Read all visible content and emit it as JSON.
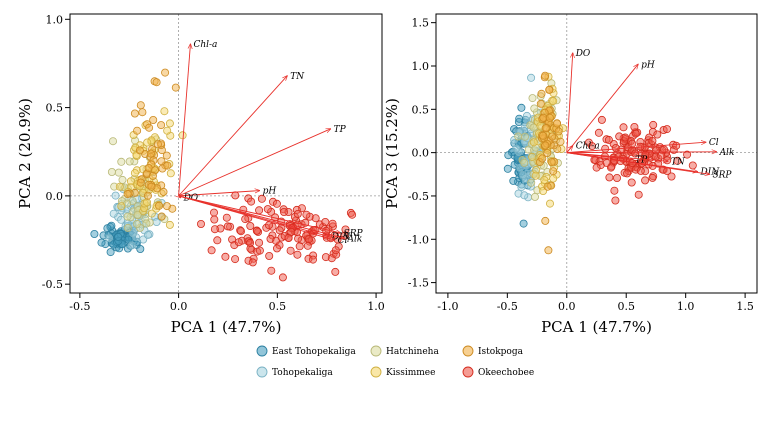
{
  "chart_data": [
    {
      "type": "scatter",
      "title": "",
      "xlabel": "PCA 1 (47.7%)",
      "ylabel": "PCA 2 (20.9%)",
      "xlim": [
        -0.55,
        1.03
      ],
      "ylim": [
        -0.55,
        1.03
      ],
      "xticks": [
        -0.5,
        0.0,
        0.5,
        1.0
      ],
      "yticks": [
        -0.5,
        0.0,
        0.5,
        1.0
      ],
      "xtick_labels": [
        "-0.5",
        "0.0",
        "0.5",
        "1.0"
      ],
      "ytick_labels": [
        "-0.5",
        "0.0",
        "0.5",
        "1.0"
      ],
      "grid": false,
      "reference_lines": {
        "x": 0,
        "y": 0
      },
      "clusters": [
        {
          "lake": "East Tohopekaliga",
          "center": [
            -0.3,
            -0.24
          ],
          "spread": [
            0.05,
            0.03
          ],
          "n": 70
        },
        {
          "lake": "Tohopekaliga",
          "center": [
            -0.22,
            -0.12
          ],
          "spread": [
            0.06,
            0.07
          ],
          "n": 50
        },
        {
          "lake": "Hatchineha",
          "center": [
            -0.2,
            0.03
          ],
          "spread": [
            0.07,
            0.12
          ],
          "n": 60
        },
        {
          "lake": "Kissimmee",
          "center": [
            -0.16,
            0.12
          ],
          "spread": [
            0.06,
            0.15
          ],
          "n": 60
        },
        {
          "lake": "Istokpoga",
          "center": [
            -0.13,
            0.25
          ],
          "spread": [
            0.05,
            0.18
          ],
          "n": 50
        },
        {
          "lake": "Okeechobee",
          "center": [
            0.53,
            -0.22
          ],
          "spread": [
            0.19,
            0.1
          ],
          "n": 130
        }
      ],
      "loadings": [
        {
          "label": "Chl-a",
          "x": 0.06,
          "y": 0.86
        },
        {
          "label": "TN",
          "x": 0.55,
          "y": 0.68
        },
        {
          "label": "TP",
          "x": 0.77,
          "y": 0.38
        },
        {
          "label": "pH",
          "x": 0.41,
          "y": 0.03
        },
        {
          "label": "DO",
          "x": 0.01,
          "y": -0.01
        },
        {
          "label": "SRP",
          "x": 0.82,
          "y": -0.21
        },
        {
          "label": "DIN",
          "x": 0.76,
          "y": -0.23
        },
        {
          "label": "Cl",
          "x": 0.79,
          "y": -0.25
        },
        {
          "label": "Alk",
          "x": 0.84,
          "y": -0.24
        }
      ]
    },
    {
      "type": "scatter",
      "title": "",
      "xlabel": "PCA 1 (47.7%)",
      "ylabel": "PCA 3 (15.2%)",
      "xlim": [
        -1.1,
        1.6
      ],
      "ylim": [
        -1.62,
        1.6
      ],
      "xticks": [
        -1.0,
        -0.5,
        0.0,
        0.5,
        1.0,
        1.5
      ],
      "yticks": [
        -1.5,
        -1.0,
        -0.5,
        0.0,
        0.5,
        1.0,
        1.5
      ],
      "xtick_labels": [
        "-1.0",
        "-0.5",
        "0.0",
        "0.5",
        "1.0",
        "1.5"
      ],
      "ytick_labels": [
        "-1.5",
        "-1.0",
        "-0.5",
        "0.0",
        "0.5",
        "1.0",
        "1.5"
      ],
      "grid": false,
      "reference_lines": {
        "x": 0,
        "y": 0
      },
      "clusters": [
        {
          "lake": "East Tohopekaliga",
          "center": [
            -0.38,
            -0.05
          ],
          "spread": [
            0.05,
            0.25
          ],
          "n": 60
        },
        {
          "lake": "Tohopekaliga",
          "center": [
            -0.32,
            0.0
          ],
          "spread": [
            0.06,
            0.3
          ],
          "n": 50
        },
        {
          "lake": "Hatchineha",
          "center": [
            -0.22,
            0.05
          ],
          "spread": [
            0.07,
            0.32
          ],
          "n": 60
        },
        {
          "lake": "Kissimmee",
          "center": [
            -0.18,
            0.1
          ],
          "spread": [
            0.06,
            0.34
          ],
          "n": 60
        },
        {
          "lake": "Istokpoga",
          "center": [
            -0.15,
            0.25
          ],
          "spread": [
            0.05,
            0.35
          ],
          "n": 50
        },
        {
          "lake": "Okeechobee",
          "center": [
            0.6,
            -0.05
          ],
          "spread": [
            0.18,
            0.15
          ],
          "n": 130
        }
      ],
      "loadings": [
        {
          "label": "DO",
          "x": 0.05,
          "y": 1.15
        },
        {
          "label": "pH",
          "x": 0.6,
          "y": 1.02
        },
        {
          "label": "Chl-a",
          "x": 0.05,
          "y": 0.08
        },
        {
          "label": "TP",
          "x": 0.55,
          "y": -0.08
        },
        {
          "label": "Cl",
          "x": 1.17,
          "y": 0.12
        },
        {
          "label": "Alk",
          "x": 1.26,
          "y": 0.01
        },
        {
          "label": "TN",
          "x": 0.85,
          "y": -0.1
        },
        {
          "label": "DIN",
          "x": 1.1,
          "y": -0.22
        },
        {
          "label": "SRP",
          "x": 1.2,
          "y": -0.25
        }
      ]
    }
  ],
  "legend": {
    "placement": "bottom-center",
    "items": [
      {
        "label": "East Tohopekaliga",
        "fill": "#4a9fc0",
        "stroke": "#2a7fa0"
      },
      {
        "label": "Hatchineha",
        "fill": "#dcdca0",
        "stroke": "#b8b878"
      },
      {
        "label": "Istokpoga",
        "fill": "#f2b14a",
        "stroke": "#cc8a20"
      },
      {
        "label": "Tohopekaliga",
        "fill": "#a8d3e0",
        "stroke": "#7ab2c4"
      },
      {
        "label": "Kissimmee",
        "fill": "#f5d76e",
        "stroke": "#d0b040"
      },
      {
        "label": "Okeechobee",
        "fill": "#ef5a4c",
        "stroke": "#d42a1c"
      }
    ]
  },
  "colors": {
    "arrow": "#e8312b",
    "refline": "#9a9a9a"
  }
}
